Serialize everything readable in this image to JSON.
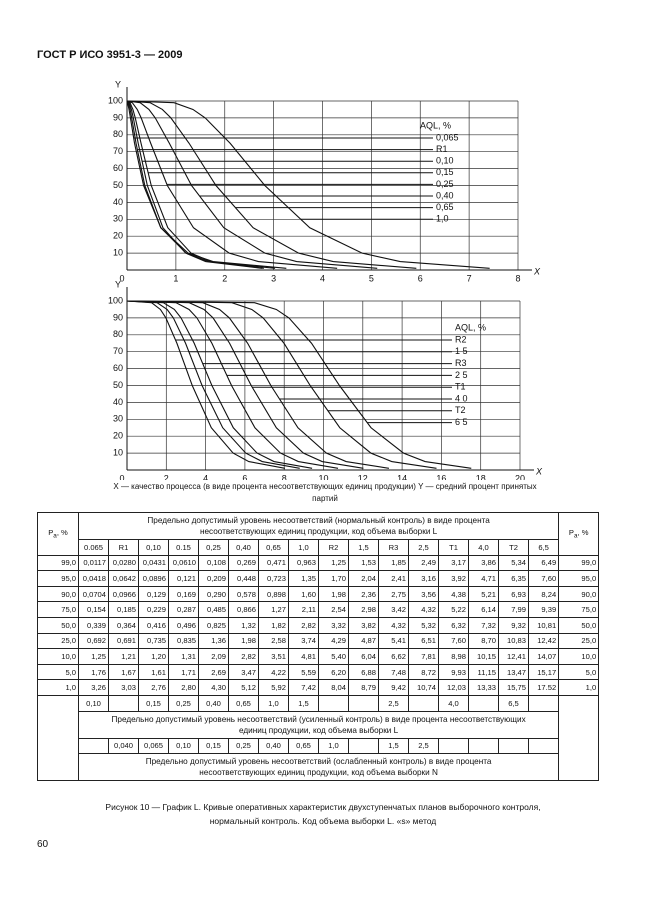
{
  "header": {
    "title": "ГОСТ Р ИСО 3951-3 — 2009"
  },
  "chart_data": [
    {
      "type": "line",
      "y_label": "Y",
      "x_label": "X",
      "xlim": [
        0,
        8
      ],
      "ylim": [
        0,
        100
      ],
      "xticks": [
        0,
        1,
        2,
        3,
        4,
        5,
        6,
        7,
        8
      ],
      "yticks": [
        0,
        10,
        20,
        30,
        40,
        50,
        60,
        70,
        80,
        90,
        100
      ],
      "grid": true,
      "legend_title": "AQL, %",
      "legend_position": "right",
      "series": [
        {
          "name": "0,065",
          "color": "#111",
          "x": [
            0,
            0.0117,
            0.0418,
            0.0704,
            0.154,
            0.339,
            0.692,
            1.25,
            1.76,
            3.26
          ],
          "values": [
            100,
            99,
            95,
            90,
            75,
            50,
            25,
            10,
            5,
            1
          ]
        },
        {
          "name": "R1",
          "color": "#111",
          "x": [
            0,
            0.028,
            0.0642,
            0.0966,
            0.185,
            0.364,
            0.691,
            1.21,
            1.67,
            3.03
          ],
          "values": [
            100,
            99,
            95,
            90,
            75,
            50,
            25,
            10,
            5,
            1
          ]
        },
        {
          "name": "0,10",
          "color": "#111",
          "x": [
            0,
            0.0431,
            0.0896,
            0.129,
            0.229,
            0.416,
            0.735,
            1.2,
            1.61,
            2.76
          ],
          "values": [
            100,
            99,
            95,
            90,
            75,
            50,
            25,
            10,
            5,
            1
          ]
        },
        {
          "name": "0,15",
          "color": "#111",
          "x": [
            0,
            0.061,
            0.121,
            0.169,
            0.287,
            0.496,
            0.835,
            1.31,
            1.71,
            2.8
          ],
          "values": [
            100,
            99,
            95,
            90,
            75,
            50,
            25,
            10,
            5,
            1
          ]
        },
        {
          "name": "0,25",
          "color": "#111",
          "x": [
            0,
            0.108,
            0.209,
            0.29,
            0.485,
            0.825,
            1.36,
            2.09,
            2.69,
            4.3
          ],
          "values": [
            100,
            99,
            95,
            90,
            75,
            50,
            25,
            10,
            5,
            1
          ]
        },
        {
          "name": "0,40",
          "color": "#111",
          "x": [
            0,
            0.269,
            0.448,
            0.578,
            0.866,
            1.32,
            1.98,
            2.82,
            3.47,
            5.12
          ],
          "values": [
            100,
            99,
            95,
            90,
            75,
            50,
            25,
            10,
            5,
            1
          ]
        },
        {
          "name": "0,65",
          "color": "#111",
          "x": [
            0,
            0.471,
            0.723,
            0.898,
            1.27,
            1.82,
            2.58,
            3.51,
            4.22,
            5.92
          ],
          "values": [
            100,
            99,
            95,
            90,
            75,
            50,
            25,
            10,
            5,
            1
          ]
        },
        {
          "name": "1,0",
          "color": "#111",
          "x": [
            0,
            0.963,
            1.35,
            1.6,
            2.11,
            2.82,
            3.74,
            4.81,
            5.59,
            7.42
          ],
          "values": [
            100,
            99,
            95,
            90,
            75,
            50,
            25,
            10,
            5,
            1
          ]
        }
      ]
    },
    {
      "type": "line",
      "y_label": "Y",
      "x_label": "X",
      "xlim": [
        0,
        20
      ],
      "ylim": [
        0,
        100
      ],
      "xticks": [
        0,
        2,
        4,
        6,
        8,
        10,
        12,
        14,
        16,
        18,
        20
      ],
      "yticks": [
        0,
        10,
        20,
        30,
        40,
        50,
        60,
        70,
        80,
        90,
        100
      ],
      "grid": true,
      "legend_title": "AQL, %",
      "legend_position": "right",
      "series": [
        {
          "name": "R2",
          "color": "#111",
          "x": [
            0,
            1.25,
            1.7,
            1.98,
            2.54,
            3.32,
            4.29,
            5.4,
            6.2,
            8.04
          ],
          "values": [
            100,
            99,
            95,
            90,
            75,
            50,
            25,
            10,
            5,
            1
          ]
        },
        {
          "name": "1 5",
          "color": "#111",
          "x": [
            0,
            1.53,
            2.04,
            2.36,
            2.98,
            3.82,
            4.87,
            6.04,
            6.88,
            8.79
          ],
          "values": [
            100,
            99,
            95,
            90,
            75,
            50,
            25,
            10,
            5,
            1
          ]
        },
        {
          "name": "R3",
          "color": "#111",
          "x": [
            0,
            1.85,
            2.41,
            2.75,
            3.42,
            4.32,
            5.41,
            6.62,
            7.48,
            9.42
          ],
          "values": [
            100,
            99,
            95,
            90,
            75,
            50,
            25,
            10,
            5,
            1
          ]
        },
        {
          "name": "2 5",
          "color": "#111",
          "x": [
            0,
            2.49,
            3.16,
            3.56,
            4.32,
            5.32,
            6.51,
            7.81,
            8.72,
            10.74
          ],
          "values": [
            100,
            99,
            95,
            90,
            75,
            50,
            25,
            10,
            5,
            1
          ]
        },
        {
          "name": "T1",
          "color": "#111",
          "x": [
            0,
            3.17,
            3.92,
            4.38,
            5.22,
            6.32,
            7.6,
            8.98,
            9.93,
            12.03
          ],
          "values": [
            100,
            99,
            95,
            90,
            75,
            50,
            25,
            10,
            5,
            1
          ]
        },
        {
          "name": "4 0",
          "color": "#111",
          "x": [
            0,
            3.86,
            4.71,
            5.21,
            6.14,
            7.32,
            8.7,
            10.15,
            11.15,
            13.33
          ],
          "values": [
            100,
            99,
            95,
            90,
            75,
            50,
            25,
            10,
            5,
            1
          ]
        },
        {
          "name": "T2",
          "color": "#111",
          "x": [
            0,
            5.34,
            6.35,
            6.93,
            7.99,
            9.32,
            10.83,
            12.41,
            13.47,
            15.75
          ],
          "values": [
            100,
            99,
            95,
            90,
            75,
            50,
            25,
            10,
            5,
            1
          ]
        },
        {
          "name": "6 5",
          "color": "#111",
          "x": [
            0,
            6.49,
            7.6,
            8.24,
            9.39,
            10.81,
            12.42,
            14.07,
            15.17,
            17.52
          ],
          "values": [
            100,
            99,
            95,
            90,
            75,
            50,
            25,
            10,
            5,
            1
          ]
        }
      ]
    }
  ],
  "axis_note": "X — качество процесса (в виде процента несоответствующих единиц продукции)   Y — средний процент принятых партий",
  "table": {
    "pa_header": {
      "symbol": "P",
      "subscript": "a",
      "unit": ", %"
    },
    "normal_title": "Предельно допустимый уровень несоответствий (нормальный контроль) в виде процента несоответствующих единиц продукции, код объема выборки L",
    "columns": [
      "0.065",
      "R1",
      "0,10",
      "0.15",
      "0,25",
      "0,40",
      "0,65",
      "1,0",
      "R2",
      "1,5",
      "R3",
      "2,5",
      "T1",
      "4,0",
      "T2",
      "6,5"
    ],
    "rows": [
      {
        "pa": "99,0",
        "cells": [
          "0,0117",
          "0,0280",
          "0,0431",
          "0,0610",
          "0,108",
          "0,269",
          "0,471",
          "0,963",
          "1,25",
          "1,53",
          "1,85",
          "2,49",
          "3,17",
          "3,86",
          "5,34",
          "6,49"
        ]
      },
      {
        "pa": "95,0",
        "cells": [
          "0,0418",
          "0,0642",
          "0,0896",
          "0,121",
          "0,209",
          "0,448",
          "0,723",
          "1,35",
          "1,70",
          "2,04",
          "2,41",
          "3,16",
          "3,92",
          "4,71",
          "6,35",
          "7,60"
        ]
      },
      {
        "pa": "90,0",
        "cells": [
          "0,0704",
          "0,0966",
          "0,129",
          "0,169",
          "0,290",
          "0,578",
          "0,898",
          "1,60",
          "1,98",
          "2,36",
          "2,75",
          "3,56",
          "4,38",
          "5,21",
          "6,93",
          "8,24"
        ]
      },
      {
        "pa": "75,0",
        "cells": [
          "0,154",
          "0,185",
          "0,229",
          "0,287",
          "0,485",
          "0,866",
          "1,27",
          "2,11",
          "2,54",
          "2,98",
          "3,42",
          "4,32",
          "5,22",
          "6,14",
          "7,99",
          "9,39"
        ]
      },
      {
        "pa": "50,0",
        "cells": [
          "0,339",
          "0,364",
          "0,416",
          "0,496",
          "0,825",
          "1,32",
          "1,82",
          "2,82",
          "3,32",
          "3,82",
          "4,32",
          "5,32",
          "6,32",
          "7,32",
          "9,32",
          "10,81"
        ]
      },
      {
        "pa": "25,0",
        "cells": [
          "0,692",
          "0,691",
          "0,735",
          "0,835",
          "1,36",
          "1,98",
          "2,58",
          "3,74",
          "4,29",
          "4,87",
          "5,41",
          "6,51",
          "7,60",
          "8,70",
          "10,83",
          "12,42"
        ]
      },
      {
        "pa": "10,0",
        "cells": [
          "1,25",
          "1,21",
          "1,20",
          "1,31",
          "2,09",
          "2,82",
          "3,51",
          "4,81",
          "5,40",
          "6,04",
          "6,62",
          "7,81",
          "8,98",
          "10,15",
          "12,41",
          "14,07"
        ]
      },
      {
        "pa": "5,0",
        "cells": [
          "1,76",
          "1,67",
          "1,61",
          "1,71",
          "2,69",
          "3,47",
          "4,22",
          "5,59",
          "6,20",
          "6,88",
          "7,48",
          "8,72",
          "9,93",
          "11,15",
          "13,47",
          "15,17"
        ]
      },
      {
        "pa": "1,0",
        "cells": [
          "3,26",
          "3,03",
          "2,76",
          "2,80",
          "4,30",
          "5,12",
          "5,92",
          "7,42",
          "8,04",
          "8,79",
          "9,42",
          "10,74",
          "12,03",
          "13,33",
          "15,75",
          "17.52"
        ]
      }
    ],
    "tightened_values": [
      "0,10",
      null,
      "0,15",
      "0,25",
      "0,40",
      "0,65",
      "1,0",
      "1,5",
      null,
      null,
      "2,5",
      null,
      "4,0",
      null,
      "6,5",
      null
    ],
    "tightened_title": "Предельно допустимый уровень несоответствий (усиленный контроль) в виде процента несоответствующих единиц продукции, код объема выборки L",
    "reduced_values": [
      null,
      "0,040",
      "0,065",
      "0,10",
      "0,15",
      "0,25",
      "0,40",
      "0,65",
      "1,0",
      null,
      "1,5",
      "2,5",
      null,
      null,
      null,
      null
    ],
    "reduced_title": "Предельно допустимый уровень несоответствий (ослабленный контроль) в виде процента несоответствующих единиц продукции, код объема выборки N"
  },
  "caption": {
    "line1": "Рисунок 10 — График L. Кривые оперативных характеристик двухступенчатых планов выборочного контроля,",
    "line2": "нормальный контроль. Код объема выборки L. «s» метод"
  },
  "page_number": "60"
}
